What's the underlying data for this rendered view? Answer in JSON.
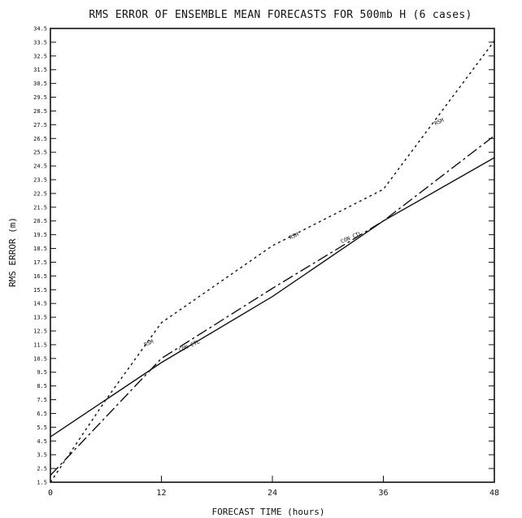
{
  "chart_data": {
    "type": "line",
    "title": "RMS ERROR OF ENSEMBLE MEAN FORECASTS FOR 500mb H (6 cases)",
    "xlabel": "FORECAST TIME (hours)",
    "ylabel": "RMS ERROR (m)",
    "xlim": [
      0,
      48
    ],
    "ylim": [
      1.5,
      34.5
    ],
    "x_ticks": [
      0,
      12,
      24,
      36,
      48
    ],
    "x_tick_labels": [
      "0",
      "12",
      "24",
      "36",
      "48"
    ],
    "y_ticks": [
      1.5,
      2.5,
      3.5,
      4.5,
      5.5,
      6.5,
      7.5,
      8.5,
      9.5,
      10.5,
      11.5,
      12.5,
      13.5,
      14.5,
      15.5,
      16.5,
      17.5,
      18.5,
      19.5,
      20.5,
      21.5,
      22.5,
      23.5,
      24.5,
      25.5,
      26.5,
      27.5,
      28.5,
      29.5,
      30.5,
      31.5,
      32.5,
      33.5,
      34.5
    ],
    "y_tick_labels": [
      "1.5",
      "2.5",
      "3.5",
      "4.5",
      "5.5",
      "6.5",
      "7.5",
      "8.5",
      "9.5",
      "10.5",
      "11.5",
      "12.5",
      "13.5",
      "14.5",
      "15.5",
      "16.5",
      "17.5",
      "18.5",
      "19.5",
      "20.5",
      "21.5",
      "22.5",
      "23.5",
      "24.5",
      "25.5",
      "26.5",
      "27.5",
      "28.5",
      "29.5",
      "30.5",
      "31.5",
      "32.5",
      "33.5",
      "34.5"
    ],
    "grid": false,
    "legend": "none",
    "series": [
      {
        "name": "RSM",
        "style": "dotted",
        "x": [
          0,
          6,
          12,
          24,
          36,
          48
        ],
        "y": [
          1.5,
          7.5,
          13.1,
          18.7,
          22.8,
          33.6
        ],
        "labels": [
          {
            "text": "RSM",
            "x": 10.7,
            "y": 11.5
          },
          {
            "text": "RSM",
            "x": 26.4,
            "y": 19.3
          },
          {
            "text": "RSM",
            "x": 42.1,
            "y": 27.6
          }
        ]
      },
      {
        "name": "",
        "style": "solid",
        "x": [
          0,
          12,
          24,
          36,
          48
        ],
        "y": [
          4.8,
          10.2,
          15.0,
          20.5,
          25.1
        ]
      },
      {
        "name": "",
        "style": "dashdot",
        "x": [
          0,
          12,
          24,
          36,
          48
        ],
        "y": [
          2.0,
          10.5,
          15.6,
          20.5,
          26.7
        ],
        "labels": [
          {
            "text": "CON CTL",
            "x": 15.1,
            "y": 11.3
          },
          {
            "text": "CON CTL",
            "x": 32.6,
            "y": 19.2
          }
        ]
      }
    ]
  }
}
